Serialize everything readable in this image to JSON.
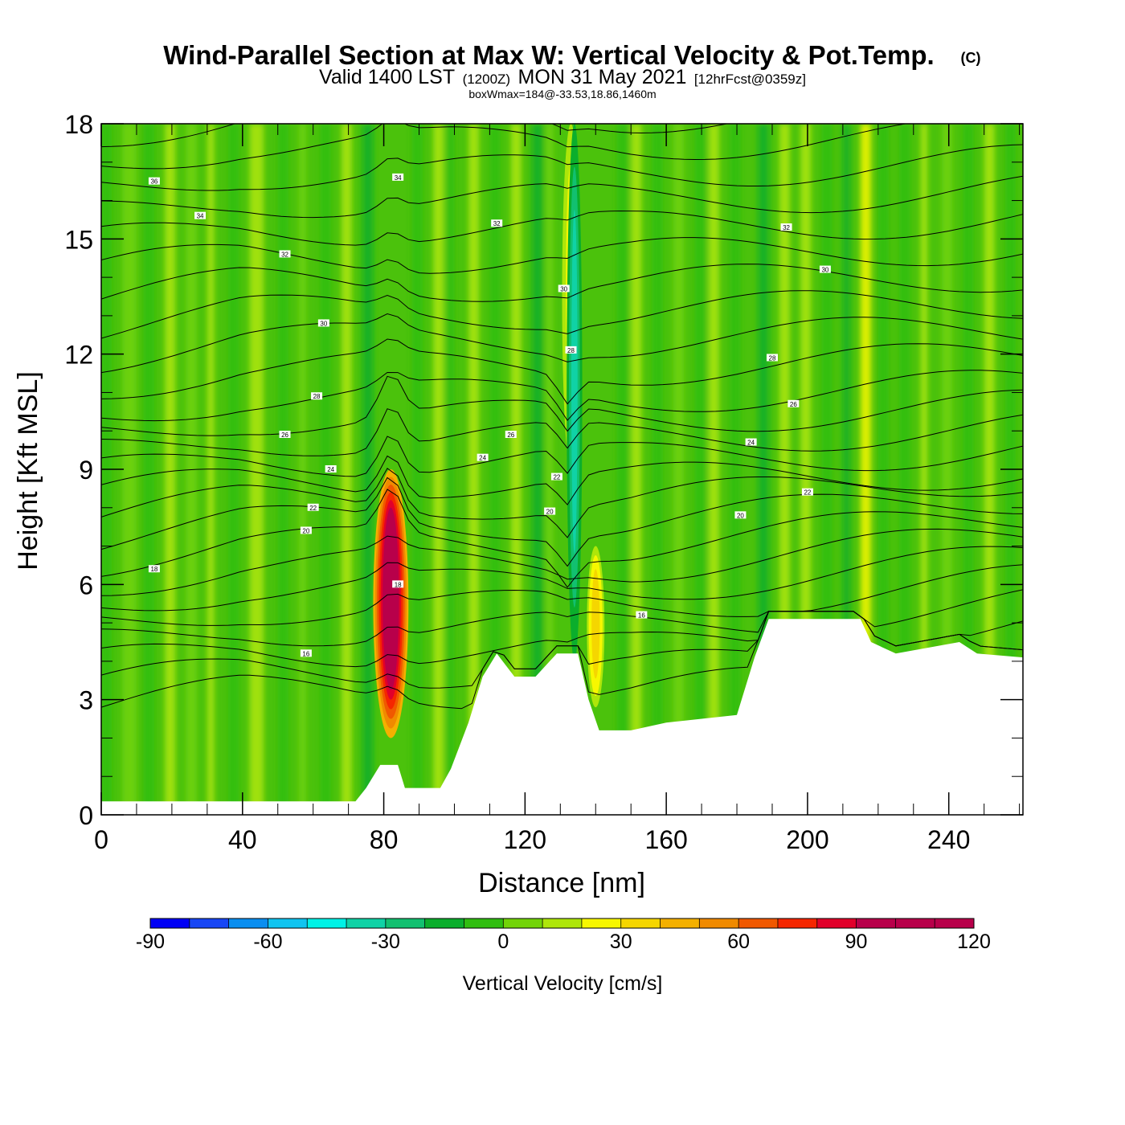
{
  "title": {
    "main": "Wind-Parallel Section at Max W: Vertical Velocity & Pot.Temp.",
    "copyright": "(C)",
    "valid_prefix": "Valid 1400 LST",
    "valid_utc": "(1200Z)",
    "valid_date": "MON 31 May 2021",
    "forecast": "[12hrFcst@0359z]",
    "boxwmax": "boxWmax=184@-33.53,18.86,1460m"
  },
  "colors": {
    "ground": "#ffffff",
    "contour": "#000000",
    "palette": [
      "#0000f5",
      "#1846f5",
      "#0a8ef0",
      "#10c4f0",
      "#00f2e6",
      "#10d2a6",
      "#12c070",
      "#0bae2c",
      "#30be10",
      "#72d408",
      "#aee60a",
      "#f7f700",
      "#f5d600",
      "#f4b000",
      "#f08a00",
      "#f05800",
      "#f52600",
      "#e1002a",
      "#b8004a"
    ]
  },
  "chart_data": {
    "type": "heatmap",
    "xlabel": "Distance [nm]",
    "ylabel": "Height [Kft MSL]",
    "xlim": [
      0,
      261
    ],
    "ylim": [
      0,
      18
    ],
    "xticks": [
      0,
      40,
      80,
      120,
      160,
      200,
      240
    ],
    "yticks": [
      0,
      3,
      6,
      9,
      12,
      15,
      18
    ],
    "colorbar": {
      "label": "Vertical Velocity [cm/s]",
      "levels": [
        -90,
        120
      ],
      "step": 10,
      "tick_values": [
        -90,
        -60,
        -30,
        0,
        30,
        60,
        90,
        120
      ]
    },
    "updraft_cores": [
      {
        "x": 82,
        "y_from": 2,
        "y_to": 9,
        "w_max": 184
      },
      {
        "x": 140,
        "y_from": 2.8,
        "y_to": 7,
        "w_max": 40
      },
      {
        "x": 133,
        "y_from": 9,
        "y_to": 18,
        "w_max": 30
      }
    ],
    "downdraft_cores": [
      {
        "x": 134,
        "y_from": 4,
        "y_to": 18,
        "w_min": -40
      }
    ],
    "terrain_height_profile": [
      [
        0,
        0.35
      ],
      [
        72,
        0.35
      ],
      [
        75,
        0.7
      ],
      [
        79,
        1.3
      ],
      [
        84,
        1.3
      ],
      [
        86,
        0.7
      ],
      [
        96,
        0.7
      ],
      [
        99,
        1.2
      ],
      [
        104,
        2.4
      ],
      [
        108,
        3.6
      ],
      [
        112,
        4.2
      ],
      [
        117,
        3.6
      ],
      [
        123,
        3.6
      ],
      [
        129,
        4.2
      ],
      [
        135,
        4.2
      ],
      [
        138,
        3.0
      ],
      [
        141,
        2.2
      ],
      [
        150,
        2.2
      ],
      [
        160,
        2.4
      ],
      [
        180,
        2.6
      ],
      [
        185,
        4.1
      ],
      [
        189,
        5.1
      ],
      [
        205,
        5.1
      ],
      [
        215,
        5.1
      ],
      [
        218,
        4.5
      ],
      [
        225,
        4.2
      ],
      [
        243,
        4.5
      ],
      [
        248,
        4.2
      ],
      [
        261,
        4.1
      ]
    ],
    "theta_contours": {
      "description": "potential temperature isolines (C)",
      "labels": [
        {
          "x": 15,
          "y": 16.5,
          "v": "36"
        },
        {
          "x": 28,
          "y": 15.6,
          "v": "34"
        },
        {
          "x": 52,
          "y": 14.6,
          "v": "32"
        },
        {
          "x": 63,
          "y": 12.8,
          "v": "30"
        },
        {
          "x": 61,
          "y": 10.9,
          "v": "28"
        },
        {
          "x": 52,
          "y": 9.9,
          "v": "26"
        },
        {
          "x": 65,
          "y": 9.0,
          "v": "24"
        },
        {
          "x": 60,
          "y": 8.0,
          "v": "22"
        },
        {
          "x": 58,
          "y": 7.4,
          "v": "20"
        },
        {
          "x": 15,
          "y": 6.4,
          "v": "18"
        },
        {
          "x": 58,
          "y": 4.2,
          "v": "16"
        },
        {
          "x": 84,
          "y": 6.0,
          "v": "18"
        },
        {
          "x": 84,
          "y": 16.6,
          "v": "34"
        },
        {
          "x": 112,
          "y": 15.4,
          "v": "32"
        },
        {
          "x": 131,
          "y": 13.7,
          "v": "30"
        },
        {
          "x": 133,
          "y": 12.1,
          "v": "28"
        },
        {
          "x": 116,
          "y": 9.9,
          "v": "26"
        },
        {
          "x": 108,
          "y": 9.3,
          "v": "24"
        },
        {
          "x": 129,
          "y": 8.8,
          "v": "22"
        },
        {
          "x": 127,
          "y": 7.9,
          "v": "20"
        },
        {
          "x": 153,
          "y": 5.2,
          "v": "16"
        },
        {
          "x": 194,
          "y": 15.3,
          "v": "32"
        },
        {
          "x": 205,
          "y": 14.2,
          "v": "30"
        },
        {
          "x": 190,
          "y": 11.9,
          "v": "28"
        },
        {
          "x": 196,
          "y": 10.7,
          "v": "26"
        },
        {
          "x": 184,
          "y": 9.7,
          "v": "24"
        },
        {
          "x": 200,
          "y": 8.4,
          "v": "22"
        },
        {
          "x": 181,
          "y": 7.8,
          "v": "20"
        }
      ]
    }
  }
}
